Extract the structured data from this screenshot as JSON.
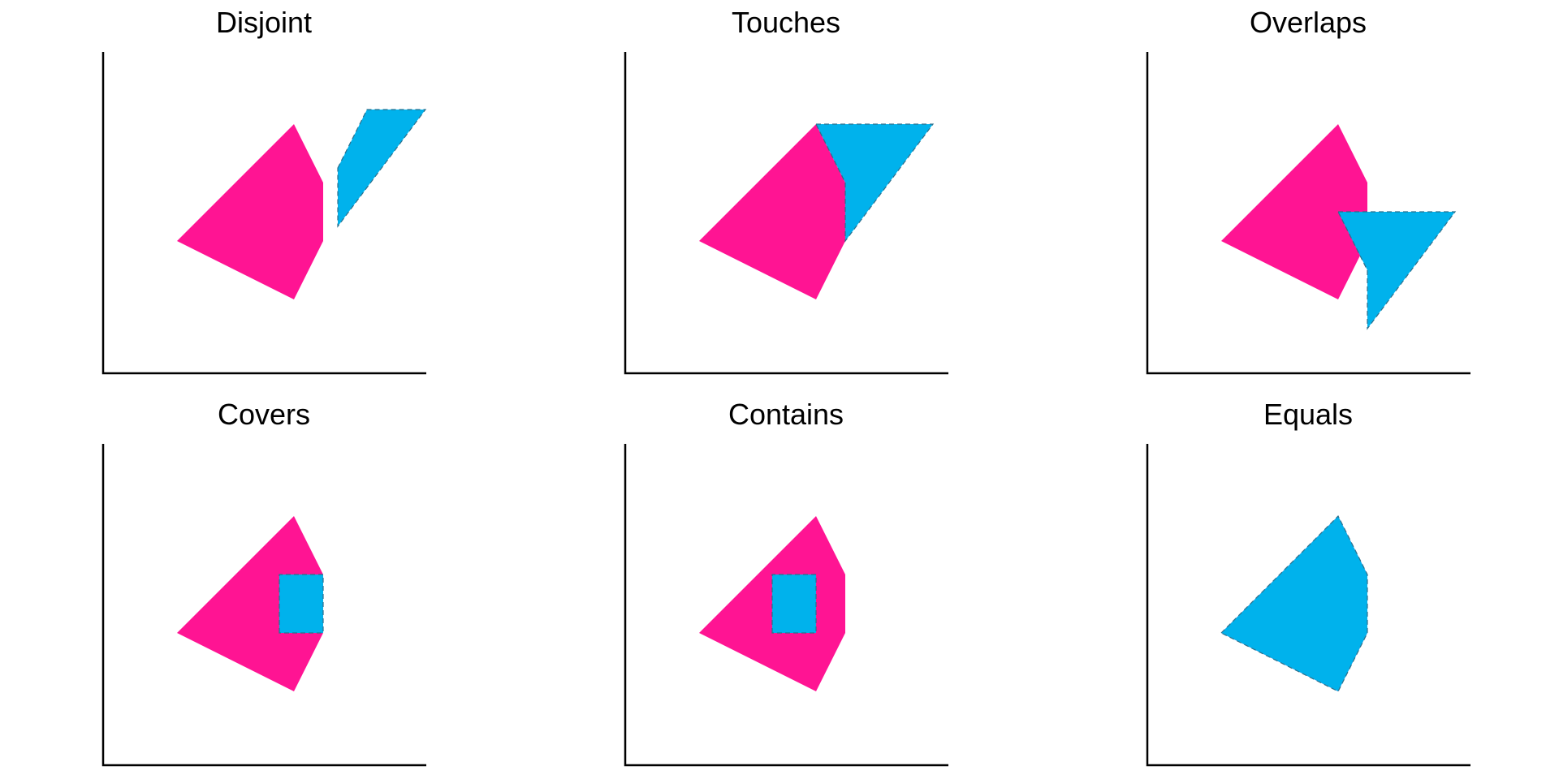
{
  "colors": {
    "shape_a": "#ff1493",
    "shape_b": "#00b2ec",
    "axis": "#000000",
    "background": "#ffffff"
  },
  "panels": [
    {
      "title": "Disjoint",
      "shape_a": [
        [
          0,
          0
        ],
        [
          4,
          4
        ],
        [
          5,
          2
        ],
        [
          5,
          0
        ],
        [
          4,
          -2
        ]
      ],
      "shape_b": [
        [
          5.5,
          2.5
        ],
        [
          6.5,
          4.5
        ],
        [
          8.5,
          4.5
        ],
        [
          5.5,
          0.5
        ]
      ]
    },
    {
      "title": "Touches",
      "shape_a": [
        [
          0,
          0
        ],
        [
          4,
          4
        ],
        [
          5,
          2
        ],
        [
          5,
          0
        ],
        [
          4,
          -2
        ]
      ],
      "shape_b": [
        [
          4,
          4
        ],
        [
          8,
          4
        ],
        [
          5,
          0
        ],
        [
          5,
          2
        ]
      ]
    },
    {
      "title": "Overlaps",
      "shape_a": [
        [
          0,
          0
        ],
        [
          4,
          4
        ],
        [
          5,
          2
        ],
        [
          5,
          0
        ],
        [
          4,
          -2
        ]
      ],
      "shape_b": [
        [
          4,
          1
        ],
        [
          8,
          1
        ],
        [
          5,
          -3
        ],
        [
          5,
          -1
        ]
      ]
    },
    {
      "title": "Covers",
      "shape_a": [
        [
          0,
          0
        ],
        [
          4,
          4
        ],
        [
          5,
          2
        ],
        [
          5,
          0
        ],
        [
          4,
          -2
        ]
      ],
      "shape_b": [
        [
          3.5,
          0
        ],
        [
          3.5,
          2
        ],
        [
          5,
          2
        ],
        [
          5,
          0
        ]
      ]
    },
    {
      "title": "Contains",
      "shape_a": [
        [
          0,
          0
        ],
        [
          4,
          4
        ],
        [
          5,
          2
        ],
        [
          5,
          0
        ],
        [
          4,
          -2
        ]
      ],
      "shape_b": [
        [
          2.5,
          0
        ],
        [
          2.5,
          2
        ],
        [
          4,
          2
        ],
        [
          4,
          0
        ]
      ]
    },
    {
      "title": "Equals",
      "shape_a": [
        [
          0,
          0
        ],
        [
          4,
          4
        ],
        [
          5,
          2
        ],
        [
          5,
          0
        ],
        [
          4,
          -2
        ]
      ],
      "shape_b": [
        [
          0,
          0
        ],
        [
          4,
          4
        ],
        [
          5,
          2
        ],
        [
          5,
          0
        ],
        [
          4,
          -2
        ]
      ]
    }
  ]
}
